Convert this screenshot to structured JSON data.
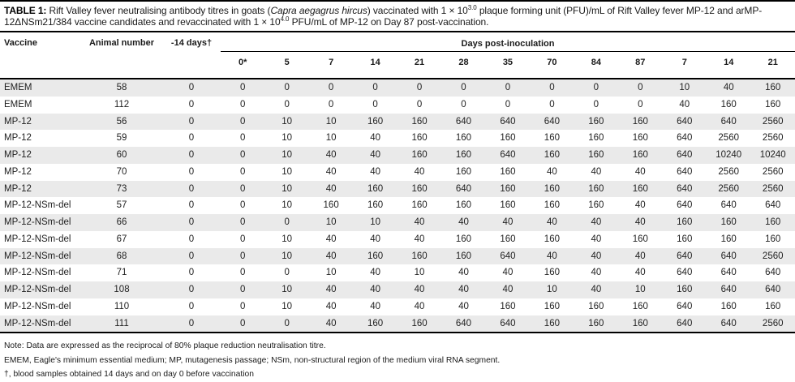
{
  "caption": {
    "label": "TABLE 1:",
    "part1": " Rift Valley fever neutralising antibody titres in goats (",
    "species": "Capra aegagrus hircus",
    "part2": ") vaccinated with 1 × 10",
    "sup1": "3.0",
    "part3": " plaque forming unit (PFU)/mL of Rift Valley fever MP-12 and arMP-12ΔNSm21/384 vaccine candidates and revaccinated with 1 × 10",
    "sup2": "4.0",
    "part4": " PFU/mL of MP-12 on Day 87 post-vaccination."
  },
  "table": {
    "headers": {
      "vaccine": "Vaccine",
      "animal_number": "Animal number",
      "minus_14_days": "-14 days†",
      "group": "Days post-inoculation",
      "days": [
        "0*",
        "5",
        "7",
        "14",
        "21",
        "28",
        "35",
        "70",
        "84",
        "87",
        "7",
        "14",
        "21"
      ]
    },
    "rows": [
      {
        "vaccine": "EMEM",
        "animal_number": "58",
        "minus_14_days": "0",
        "values": [
          "0",
          "0",
          "0",
          "0",
          "0",
          "0",
          "0",
          "0",
          "0",
          "0",
          "10",
          "40",
          "160"
        ]
      },
      {
        "vaccine": "EMEM",
        "animal_number": "112",
        "minus_14_days": "0",
        "values": [
          "0",
          "0",
          "0",
          "0",
          "0",
          "0",
          "0",
          "0",
          "0",
          "0",
          "40",
          "160",
          "160"
        ]
      },
      {
        "vaccine": "MP-12",
        "animal_number": "56",
        "minus_14_days": "0",
        "values": [
          "0",
          "10",
          "10",
          "160",
          "160",
          "640",
          "640",
          "640",
          "160",
          "160",
          "640",
          "640",
          "2560"
        ]
      },
      {
        "vaccine": "MP-12",
        "animal_number": "59",
        "minus_14_days": "0",
        "values": [
          "0",
          "10",
          "10",
          "40",
          "160",
          "160",
          "160",
          "160",
          "160",
          "160",
          "640",
          "2560",
          "2560"
        ]
      },
      {
        "vaccine": "MP-12",
        "animal_number": "60",
        "minus_14_days": "0",
        "values": [
          "0",
          "10",
          "40",
          "40",
          "160",
          "160",
          "640",
          "160",
          "160",
          "160",
          "640",
          "10240",
          "10240"
        ]
      },
      {
        "vaccine": "MP-12",
        "animal_number": "70",
        "minus_14_days": "0",
        "values": [
          "0",
          "10",
          "40",
          "40",
          "40",
          "160",
          "160",
          "40",
          "40",
          "40",
          "640",
          "2560",
          "2560"
        ]
      },
      {
        "vaccine": "MP-12",
        "animal_number": "73",
        "minus_14_days": "0",
        "values": [
          "0",
          "10",
          "40",
          "160",
          "160",
          "640",
          "160",
          "160",
          "160",
          "160",
          "640",
          "2560",
          "2560"
        ]
      },
      {
        "vaccine": "MP-12-NSm-del",
        "animal_number": "57",
        "minus_14_days": "0",
        "values": [
          "0",
          "10",
          "160",
          "160",
          "160",
          "160",
          "160",
          "160",
          "160",
          "40",
          "640",
          "640",
          "640"
        ]
      },
      {
        "vaccine": "MP-12-NSm-del",
        "animal_number": "66",
        "minus_14_days": "0",
        "values": [
          "0",
          "0",
          "10",
          "10",
          "40",
          "40",
          "40",
          "40",
          "40",
          "40",
          "160",
          "160",
          "160"
        ]
      },
      {
        "vaccine": "MP-12-NSm-del",
        "animal_number": "67",
        "minus_14_days": "0",
        "values": [
          "0",
          "10",
          "40",
          "40",
          "40",
          "160",
          "160",
          "160",
          "40",
          "160",
          "160",
          "160",
          "160"
        ]
      },
      {
        "vaccine": "MP-12-NSm-del",
        "animal_number": "68",
        "minus_14_days": "0",
        "values": [
          "0",
          "10",
          "40",
          "160",
          "160",
          "160",
          "640",
          "40",
          "40",
          "40",
          "640",
          "640",
          "2560"
        ]
      },
      {
        "vaccine": "MP-12-NSm-del",
        "animal_number": "71",
        "minus_14_days": "0",
        "values": [
          "0",
          "0",
          "10",
          "40",
          "10",
          "40",
          "40",
          "160",
          "40",
          "40",
          "640",
          "640",
          "640"
        ]
      },
      {
        "vaccine": "MP-12-NSm-del",
        "animal_number": "108",
        "minus_14_days": "0",
        "values": [
          "0",
          "10",
          "40",
          "40",
          "40",
          "40",
          "40",
          "10",
          "40",
          "10",
          "160",
          "640",
          "640"
        ]
      },
      {
        "vaccine": "MP-12-NSm-del",
        "animal_number": "110",
        "minus_14_days": "0",
        "values": [
          "0",
          "10",
          "40",
          "40",
          "40",
          "40",
          "160",
          "160",
          "160",
          "160",
          "640",
          "160",
          "160"
        ]
      },
      {
        "vaccine": "MP-12-NSm-del",
        "animal_number": "111",
        "minus_14_days": "0",
        "values": [
          "0",
          "0",
          "40",
          "160",
          "160",
          "640",
          "640",
          "160",
          "160",
          "160",
          "640",
          "640",
          "2560"
        ]
      }
    ]
  },
  "notes": [
    "Note: Data are expressed as the reciprocal of 80% plaque reduction neutralisation titre.",
    "EMEM, Eagle's minimum essential medium; MP, mutagenesis passage; NSm, non-structural region of the medium viral RNA segment.",
    "†, blood samples obtained 14 days and on day 0 before vaccination"
  ],
  "colors": {
    "rule": "#000000",
    "row_stripe": "#eaeaea",
    "text": "#222222"
  }
}
